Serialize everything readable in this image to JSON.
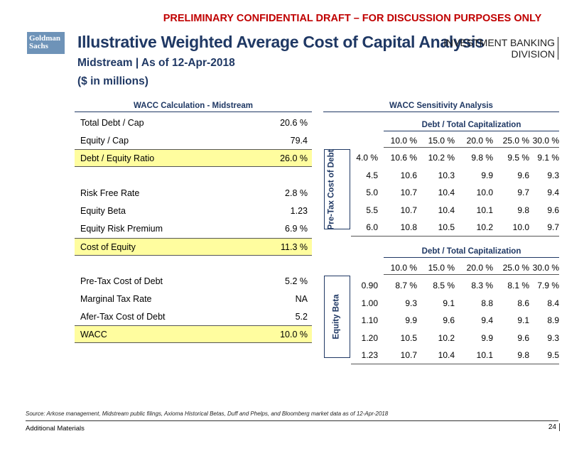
{
  "banner": "PRELIMINARY CONFIDENTIAL DRAFT – FOR DISCUSSION PURPOSES ONLY",
  "logo": {
    "line1": "Goldman",
    "line2": "Sachs",
    "color": "#6e93b8"
  },
  "title": "Illustrative Weighted Average Cost of Capital Analysis",
  "subtitle": "Midstream | As of 12-Apr-2018",
  "units": "($ in millions)",
  "division": {
    "line1": "INVESTMENT BANKING",
    "line2": "DIVISION"
  },
  "wacc_calc": {
    "title": "WACC Calculation - Midstream",
    "rows": [
      {
        "label": "Total Debt / Cap",
        "value": "20.6 %"
      },
      {
        "label": "Equity / Cap",
        "value": "79.4"
      },
      {
        "label": "Debt / Equity Ratio",
        "value": "26.0 %"
      },
      {
        "label": "Risk Free Rate",
        "value": "2.8 %"
      },
      {
        "label": "Equity Beta",
        "value": "1.23"
      },
      {
        "label": "Equity Risk Premium",
        "value": "6.9 %"
      },
      {
        "label": "Cost of Equity",
        "value": "11.3 %"
      },
      {
        "label": "Pre-Tax Cost of Debt",
        "value": "5.2 %"
      },
      {
        "label": "Marginal Tax Rate",
        "value": "NA"
      },
      {
        "label": "Afer-Tax Cost of Debt",
        "value": "5.2"
      },
      {
        "label": "WACC",
        "value": "10.0 %"
      }
    ]
  },
  "sensitivity": {
    "title": "WACC Sensitivity Analysis",
    "table1": {
      "header": "Debt / Total Capitalization",
      "row_axis": "Pre-Tax Cost of Debt",
      "cols": [
        "10.0 %",
        "15.0 %",
        "20.0 %",
        "25.0 %",
        "30.0 %"
      ],
      "rows": [
        {
          "label": "4.0 %",
          "cells": [
            "10.6 %",
            "10.2 %",
            "9.8 %",
            "9.5 %",
            "9.1 %"
          ]
        },
        {
          "label": "4.5",
          "cells": [
            "10.6",
            "10.3",
            "9.9",
            "9.6",
            "9.3"
          ]
        },
        {
          "label": "5.0",
          "cells": [
            "10.7",
            "10.4",
            "10.0",
            "9.7",
            "9.4"
          ]
        },
        {
          "label": "5.5",
          "cells": [
            "10.7",
            "10.4",
            "10.1",
            "9.8",
            "9.6"
          ]
        },
        {
          "label": "6.0",
          "cells": [
            "10.8",
            "10.5",
            "10.2",
            "10.0",
            "9.7"
          ]
        }
      ]
    },
    "table2": {
      "header": "Debt / Total Capitalization",
      "row_axis": "Equity Beta",
      "cols": [
        "10.0 %",
        "15.0 %",
        "20.0 %",
        "25.0 %",
        "30.0 %"
      ],
      "rows": [
        {
          "label": "0.90",
          "cells": [
            "8.7 %",
            "8.5 %",
            "8.3 %",
            "8.1 %",
            "7.9 %"
          ]
        },
        {
          "label": "1.00",
          "cells": [
            "9.3",
            "9.1",
            "8.8",
            "8.6",
            "8.4"
          ]
        },
        {
          "label": "1.10",
          "cells": [
            "9.9",
            "9.6",
            "9.4",
            "9.1",
            "8.9"
          ]
        },
        {
          "label": "1.20",
          "cells": [
            "10.5",
            "10.2",
            "9.9",
            "9.6",
            "9.3"
          ]
        },
        {
          "label": "1.23",
          "cells": [
            "10.7",
            "10.4",
            "10.1",
            "9.8",
            "9.5"
          ]
        }
      ]
    }
  },
  "source": "Source: Arkose management, Midstream public filings, Axioma Historical Betas, Duff and Phelps, and Bloomberg market data as of 12-Apr-2018",
  "footer": {
    "left": "Additional Materials",
    "page": "24"
  },
  "colors": {
    "banner": "#c00000",
    "title": "#1f3864",
    "highlight": "#fffd9f"
  }
}
